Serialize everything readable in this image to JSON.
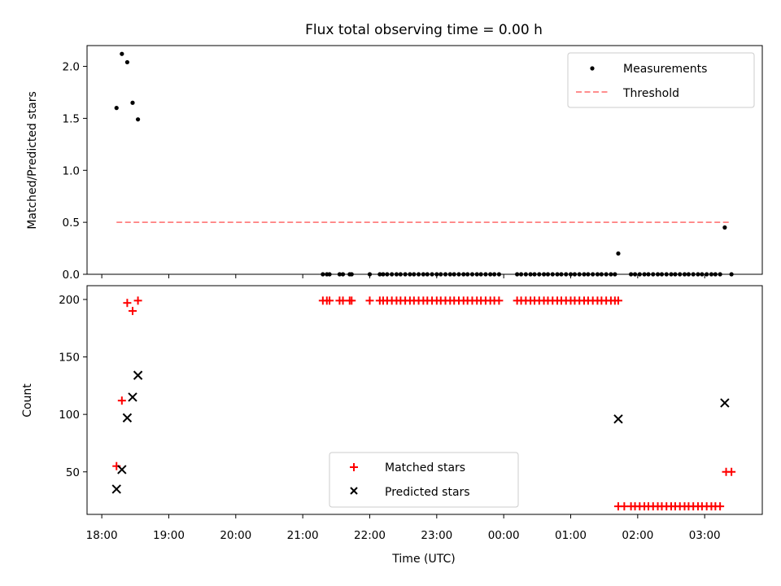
{
  "chart_data": [
    {
      "type": "scatter",
      "title": "Flux total observing time = 0.00 h",
      "xlabel": "",
      "ylabel": "Matched/Predicted stars",
      "ylim": [
        0,
        2.2
      ],
      "yticks": [
        0.0,
        0.5,
        1.0,
        1.5,
        2.0
      ],
      "ytick_labels": [
        "0.0",
        "0.5",
        "1.0",
        "1.5",
        "2.0"
      ],
      "xlim_hours": [
        17.78,
        27.86
      ],
      "legend": {
        "position": "top-right",
        "entries": [
          "Measurements",
          "Threshold"
        ]
      },
      "series": [
        {
          "name": "Measurements",
          "marker": "dot",
          "color": "#000000",
          "x_hours": [
            18.22,
            18.3,
            18.38,
            18.46,
            18.54,
            21.3,
            21.36,
            21.4,
            21.55,
            21.6,
            21.7,
            21.73,
            22.0,
            22.15,
            22.2,
            22.26,
            22.33,
            22.4,
            22.46,
            22.53,
            22.6,
            22.66,
            22.73,
            22.8,
            22.86,
            22.93,
            23.0,
            23.06,
            23.13,
            23.2,
            23.26,
            23.33,
            23.4,
            23.46,
            23.53,
            23.6,
            23.66,
            23.73,
            23.8,
            23.86,
            23.93,
            24.2,
            24.26,
            24.33,
            24.4,
            24.46,
            24.53,
            24.6,
            24.66,
            24.73,
            24.8,
            24.86,
            24.93,
            25.0,
            25.06,
            25.13,
            25.2,
            25.26,
            25.33,
            25.4,
            25.46,
            25.53,
            25.6,
            25.66,
            25.71,
            25.9,
            25.96,
            26.03,
            26.1,
            26.16,
            26.23,
            26.3,
            26.36,
            26.43,
            26.5,
            26.56,
            26.63,
            26.7,
            26.76,
            26.83,
            26.9,
            26.96,
            27.03,
            27.1,
            27.16,
            27.23,
            27.3,
            27.4
          ],
          "y": [
            1.6,
            2.12,
            2.04,
            1.65,
            1.49,
            0,
            0,
            0,
            0,
            0,
            0,
            0,
            0,
            0,
            0,
            0,
            0,
            0,
            0,
            0,
            0,
            0,
            0,
            0,
            0,
            0,
            0,
            0,
            0,
            0,
            0,
            0,
            0,
            0,
            0,
            0,
            0,
            0,
            0,
            0,
            0,
            0,
            0,
            0,
            0,
            0,
            0,
            0,
            0,
            0,
            0,
            0,
            0,
            0,
            0,
            0,
            0,
            0,
            0,
            0,
            0,
            0,
            0,
            0,
            0.2,
            0,
            0,
            0,
            0,
            0,
            0,
            0,
            0,
            0,
            0,
            0,
            0,
            0,
            0,
            0,
            0,
            0,
            0,
            0,
            0,
            0,
            0.45,
            0
          ]
        },
        {
          "name": "Threshold",
          "marker": "dashed-line",
          "color": "#ff7f7f",
          "x_hours": [
            18.22,
            27.4
          ],
          "y": [
            0.5,
            0.5
          ]
        }
      ]
    },
    {
      "type": "scatter",
      "xlabel": "Time (UTC)",
      "ylabel": "Count",
      "ylim": [
        13,
        212
      ],
      "yticks": [
        50,
        100,
        150,
        200
      ],
      "ytick_labels": [
        "50",
        "100",
        "150",
        "200"
      ],
      "xlim_hours": [
        17.78,
        27.86
      ],
      "xticks_hours": [
        18,
        19,
        20,
        21,
        22,
        23,
        24,
        25,
        26,
        27
      ],
      "xtick_labels": [
        "18:00",
        "19:00",
        "20:00",
        "21:00",
        "22:00",
        "23:00",
        "00:00",
        "01:00",
        "02:00",
        "03:00"
      ],
      "legend": {
        "position": "lower-center",
        "entries": [
          "Matched stars",
          "Predicted stars"
        ]
      },
      "series": [
        {
          "name": "Matched stars",
          "marker": "plus",
          "color": "#ff0000",
          "x_hours": [
            18.22,
            18.3,
            18.38,
            18.46,
            18.54,
            21.3,
            21.36,
            21.4,
            21.55,
            21.6,
            21.7,
            21.73,
            22.0,
            22.15,
            22.2,
            22.26,
            22.33,
            22.4,
            22.46,
            22.53,
            22.6,
            22.66,
            22.73,
            22.8,
            22.86,
            22.93,
            23.0,
            23.06,
            23.13,
            23.2,
            23.26,
            23.33,
            23.4,
            23.46,
            23.53,
            23.6,
            23.66,
            23.73,
            23.8,
            23.86,
            23.93,
            24.2,
            24.26,
            24.33,
            24.4,
            24.46,
            24.53,
            24.6,
            24.66,
            24.73,
            24.8,
            24.86,
            24.93,
            25.0,
            25.06,
            25.13,
            25.2,
            25.26,
            25.33,
            25.4,
            25.46,
            25.53,
            25.6,
            25.66,
            25.71,
            25.71,
            25.8,
            25.9,
            25.96,
            26.03,
            26.1,
            26.16,
            26.23,
            26.3,
            26.36,
            26.43,
            26.5,
            26.56,
            26.63,
            26.7,
            26.76,
            26.83,
            26.9,
            26.96,
            27.03,
            27.1,
            27.16,
            27.23,
            27.32,
            27.4
          ],
          "y": [
            55,
            112,
            197,
            190,
            199,
            199,
            199,
            199,
            199,
            199,
            199,
            199,
            199,
            199,
            199,
            199,
            199,
            199,
            199,
            199,
            199,
            199,
            199,
            199,
            199,
            199,
            199,
            199,
            199,
            199,
            199,
            199,
            199,
            199,
            199,
            199,
            199,
            199,
            199,
            199,
            199,
            199,
            199,
            199,
            199,
            199,
            199,
            199,
            199,
            199,
            199,
            199,
            199,
            199,
            199,
            199,
            199,
            199,
            199,
            199,
            199,
            199,
            199,
            199,
            199,
            20,
            20,
            20,
            20,
            20,
            20,
            20,
            20,
            20,
            20,
            20,
            20,
            20,
            20,
            20,
            20,
            20,
            20,
            20,
            20,
            20,
            20,
            20,
            50,
            50
          ]
        },
        {
          "name": "Predicted stars",
          "marker": "x",
          "color": "#000000",
          "x_hours": [
            18.22,
            18.3,
            18.38,
            18.46,
            18.54,
            25.71,
            27.3
          ],
          "y": [
            35,
            52,
            97,
            115,
            134,
            96,
            110
          ]
        }
      ]
    }
  ]
}
